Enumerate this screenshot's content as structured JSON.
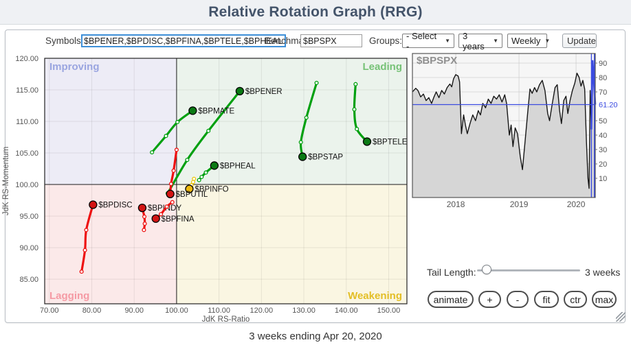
{
  "header": {
    "title": "Relative Rotation Graph (RRG)"
  },
  "toolbar": {
    "symbols_label": "Symbols:",
    "symbols_value": "$BPENER,$BPDISC,$BPFINA,$BPTELE,$BPHEAL",
    "benchmark_label": "Benchmark:",
    "benchmark_value": "$BPSPX",
    "groups_label": "Groups:",
    "groups_value": "- Select -",
    "period_value": "3 years",
    "frequency_value": "Weekly",
    "update_label": "Update",
    "dropdown_arrow": "▼"
  },
  "controls": {
    "tail_label": "Tail Length:",
    "tail_value": "3 weeks",
    "buttons": [
      {
        "id": "animate",
        "label": "animate"
      },
      {
        "id": "zoom-in",
        "label": "+"
      },
      {
        "id": "zoom-out",
        "label": "-"
      },
      {
        "id": "fit",
        "label": "fit"
      },
      {
        "id": "center",
        "label": "ctr"
      },
      {
        "id": "max",
        "label": "max"
      }
    ]
  },
  "footer": {
    "caption": "3 weeks ending Apr 20, 2020"
  },
  "chart_data": [
    {
      "type": "scatter",
      "name": "rrg-quadrant-chart",
      "xlabel": "JdK RS-Ratio",
      "ylabel": "JdK RS-Momentum",
      "xlim": [
        68.9,
        154.3
      ],
      "ylim": [
        81.1,
        120.0
      ],
      "center_x": 100,
      "center_y": 100,
      "x_ticks": [
        "70.00",
        "80.00",
        "90.00",
        "100.00",
        "110.00",
        "120.00",
        "130.00",
        "140.00",
        "150.00"
      ],
      "y_ticks": [
        "85.00",
        "90.00",
        "95.00",
        "100.00",
        "105.00",
        "110.00",
        "115.00",
        "120.00"
      ],
      "quadrants": [
        {
          "label": "Improving",
          "pos": "top-left",
          "text_color": "#9aa5e0",
          "bg": "#edecf6"
        },
        {
          "label": "Leading",
          "pos": "top-right",
          "text_color": "#76c276",
          "bg": "#ebf3ec"
        },
        {
          "label": "Lagging",
          "pos": "bottom-left",
          "text_color": "#f59aa4",
          "bg": "#fbe9e9"
        },
        {
          "label": "Weakening",
          "pos": "bottom-right",
          "text_color": "#e3be25",
          "bg": "#faf6e2"
        }
      ],
      "series": [
        {
          "symbol": "$BPENER",
          "line": "#00a010",
          "head_fill": "#0a7a14",
          "tail": [
            [
              97.9,
              98.6
            ],
            [
              102.5,
              103.9
            ],
            [
              107.5,
              108.5
            ]
          ],
          "head": [
            114.9,
            114.8
          ]
        },
        {
          "symbol": "$BPMATE",
          "line": "#00a010",
          "head_fill": "#0a7a14",
          "tail": [
            [
              94.2,
              105.1
            ],
            [
              97.5,
              107.7
            ],
            [
              100.2,
              109.9
            ]
          ],
          "head": [
            103.8,
            111.7
          ]
        },
        {
          "symbol": "$BPHEAL",
          "line": "#00a010",
          "head_fill": "#0a7a14",
          "tail": [
            [
              105.3,
              100.7
            ],
            [
              105.9,
              101.2
            ],
            [
              106.9,
              101.9
            ]
          ],
          "head": [
            108.9,
            103.0
          ]
        },
        {
          "symbol": "$BPSTAP",
          "line": "#00a010",
          "head_fill": "#0a7a14",
          "tail": [
            [
              133.0,
              116.1
            ],
            [
              130.6,
              110.6
            ],
            [
              129.3,
              106.7
            ]
          ],
          "head": [
            129.7,
            104.4
          ]
        },
        {
          "symbol": "$BPTELE",
          "line": "#00a010",
          "head_fill": "#0a7a14",
          "tail": [
            [
              142.2,
              115.9
            ],
            [
              141.9,
              111.9
            ],
            [
              142.5,
              108.8
            ]
          ],
          "head": [
            144.9,
            106.8
          ]
        },
        {
          "symbol": "$BPINFO",
          "line": "#edc60a",
          "head_fill": "#eeb80e",
          "tail": [
            [
              104.1,
              100.9
            ],
            [
              103.9,
              100.4
            ],
            [
              103.5,
              99.9
            ]
          ],
          "head": [
            103.0,
            99.3
          ]
        },
        {
          "symbol": "$BPUTIL",
          "line": "#ee1111",
          "head_fill": "#d21414",
          "tail": [
            [
              100.0,
              105.5
            ],
            [
              99.3,
              102.2
            ],
            [
              98.7,
              100.1
            ]
          ],
          "head": [
            98.5,
            98.5
          ]
        },
        {
          "symbol": "$BPDISC",
          "line": "#ee1111",
          "head_fill": "#d21414",
          "tail": [
            [
              77.6,
              86.2
            ],
            [
              78.4,
              89.6
            ],
            [
              78.7,
              92.8
            ]
          ],
          "head": [
            80.3,
            96.8
          ]
        },
        {
          "symbol": "$BPINDY",
          "line": "#ee1111",
          "head_fill": "#d21414",
          "tail": [
            [
              92.3,
              92.8
            ],
            [
              92.5,
              93.8
            ],
            [
              92.4,
              94.9
            ]
          ],
          "head": [
            91.9,
            96.3
          ]
        },
        {
          "symbol": "$BPFINA",
          "line": "#ee1111",
          "head_fill": "#d21414",
          "tail": [
            [
              99.0,
              97.2
            ],
            [
              97.7,
              96.5
            ],
            [
              96.3,
              95.3
            ]
          ],
          "head": [
            95.1,
            94.6
          ]
        }
      ]
    },
    {
      "type": "area",
      "name": "benchmark-price-chart",
      "title": "$BPSPX",
      "y_ticks": [
        10,
        20,
        30,
        40,
        50,
        70,
        80,
        90
      ],
      "grid_y": [
        10,
        20,
        30,
        40,
        50,
        60,
        70,
        80,
        90
      ],
      "current_value": 61.2,
      "current_value_label": "61.20",
      "x_ticks": [
        {
          "label": "2018",
          "f": 0.237
        },
        {
          "label": "2019",
          "f": 0.583
        },
        {
          "label": "2020",
          "f": 0.895
        }
      ],
      "marker_f": 0.979,
      "colors": {
        "line": "#161616",
        "fill": "#d6d6d6",
        "bg": "#f6f6f6",
        "blue": "#3b4be0",
        "grid": "#cfcfcf",
        "border": "#555555"
      },
      "line": [
        [
          0,
          70
        ],
        [
          0.018,
          72.5
        ],
        [
          0.03,
          71
        ],
        [
          0.045,
          66.5
        ],
        [
          0.06,
          68.5
        ],
        [
          0.075,
          64
        ],
        [
          0.09,
          66
        ],
        [
          0.105,
          62
        ],
        [
          0.118,
          66.5
        ],
        [
          0.13,
          70
        ],
        [
          0.145,
          66
        ],
        [
          0.16,
          71
        ],
        [
          0.175,
          68.5
        ],
        [
          0.19,
          73
        ],
        [
          0.205,
          75.5
        ],
        [
          0.215,
          73.5
        ],
        [
          0.225,
          79
        ],
        [
          0.237,
          82
        ],
        [
          0.25,
          81
        ],
        [
          0.258,
          77
        ],
        [
          0.268,
          41
        ],
        [
          0.28,
          54
        ],
        [
          0.29,
          47
        ],
        [
          0.3,
          41
        ],
        [
          0.315,
          48
        ],
        [
          0.33,
          54
        ],
        [
          0.345,
          50
        ],
        [
          0.36,
          57
        ],
        [
          0.372,
          54
        ],
        [
          0.385,
          62
        ],
        [
          0.4,
          59
        ],
        [
          0.415,
          65
        ],
        [
          0.43,
          62
        ],
        [
          0.445,
          67
        ],
        [
          0.46,
          65
        ],
        [
          0.475,
          68
        ],
        [
          0.49,
          63
        ],
        [
          0.505,
          68
        ],
        [
          0.515,
          62
        ],
        [
          0.53,
          40
        ],
        [
          0.54,
          47
        ],
        [
          0.55,
          32
        ],
        [
          0.562,
          45
        ],
        [
          0.575,
          41
        ],
        [
          0.59,
          25
        ],
        [
          0.602,
          16
        ],
        [
          0.615,
          34
        ],
        [
          0.63,
          55
        ],
        [
          0.643,
          72
        ],
        [
          0.655,
          69
        ],
        [
          0.668,
          73
        ],
        [
          0.68,
          70
        ],
        [
          0.695,
          75
        ],
        [
          0.71,
          78
        ],
        [
          0.725,
          71
        ],
        [
          0.74,
          55
        ],
        [
          0.75,
          50
        ],
        [
          0.765,
          62
        ],
        [
          0.78,
          73
        ],
        [
          0.792,
          75
        ],
        [
          0.805,
          57
        ],
        [
          0.815,
          48
        ],
        [
          0.828,
          64
        ],
        [
          0.84,
          67
        ],
        [
          0.85,
          55
        ],
        [
          0.862,
          64
        ],
        [
          0.875,
          71
        ],
        [
          0.888,
          76
        ],
        [
          0.9,
          83
        ],
        [
          0.912,
          80
        ],
        [
          0.922,
          74
        ],
        [
          0.932,
          78
        ],
        [
          0.942,
          72
        ],
        [
          0.952,
          35
        ],
        [
          0.96,
          10
        ],
        [
          0.966,
          3
        ],
        [
          0.972,
          71
        ],
        [
          0.979,
          44
        ]
      ],
      "highlight": [
        [
          0.979,
          44
        ],
        [
          0.9855,
          92
        ],
        [
          1,
          61.2
        ]
      ]
    }
  ]
}
